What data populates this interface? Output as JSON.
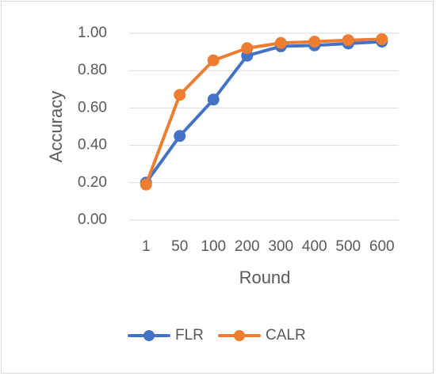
{
  "chart_data": {
    "type": "line",
    "categories": [
      "1",
      "50",
      "100",
      "200",
      "300",
      "400",
      "500",
      "600"
    ],
    "series": [
      {
        "name": "FLR",
        "color": "#4472C4",
        "values": [
          0.2,
          0.45,
          0.645,
          0.88,
          0.93,
          0.935,
          0.945,
          0.955
        ]
      },
      {
        "name": "CALR",
        "color": "#ED7D31",
        "values": [
          0.19,
          0.67,
          0.855,
          0.92,
          0.948,
          0.955,
          0.963,
          0.968
        ]
      }
    ],
    "xlabel": "Round",
    "ylabel": "Accuracy",
    "ylim": [
      0,
      1.0
    ],
    "yticks": [
      "0.00",
      "0.20",
      "0.40",
      "0.60",
      "0.80",
      "1.00"
    ],
    "grid": "horizontal",
    "legend_position": "bottom"
  }
}
